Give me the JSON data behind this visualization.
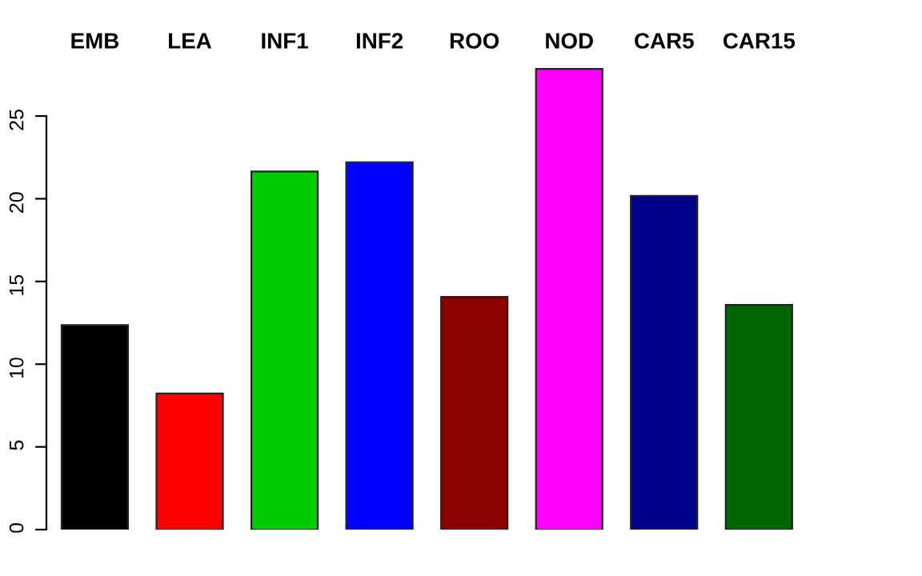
{
  "chart_data": {
    "type": "bar",
    "categories": [
      "EMB",
      "LEA",
      "INF1",
      "INF2",
      "ROO",
      "NOD",
      "CAR5",
      "CAR15"
    ],
    "values": [
      12.36,
      8.23,
      21.65,
      22.2,
      14.07,
      27.85,
      20.17,
      13.58
    ],
    "colors": [
      "#000000",
      "#ff0000",
      "#00cd00",
      "#0000ff",
      "#8b0000",
      "#ff00ff",
      "#00008b",
      "#006400"
    ],
    "ylim": [
      0,
      28
    ],
    "yticks": [
      0,
      5,
      10,
      15,
      20,
      25
    ],
    "grid": false,
    "legend": false
  }
}
